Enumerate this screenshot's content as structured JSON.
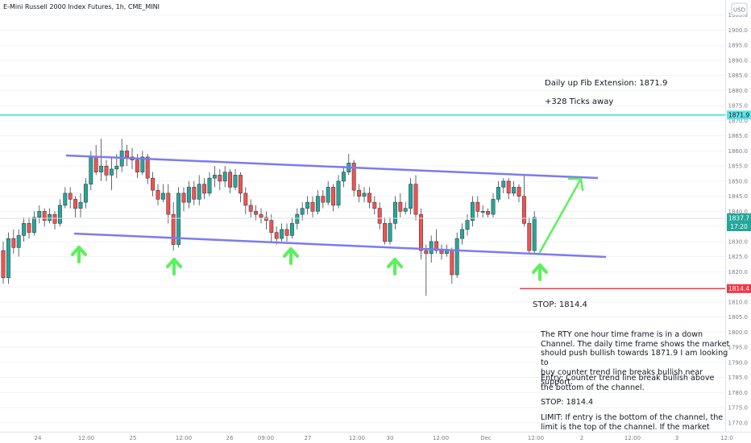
{
  "header": {
    "title": "E-Mini Russell 2000 Index Futures, 1h, CME_MINI",
    "currency": "USD"
  },
  "colors": {
    "up": "#26a69a",
    "down": "#ef5350",
    "channel": "#7b7bf0",
    "target": "#5ee1e6",
    "stop": "#f23645",
    "arrow": "#5cf05c",
    "axis_text": "#787b86",
    "grid": "#f0f3fa"
  },
  "price_axis": {
    "ticks": [
      1770,
      1775,
      1780,
      1785,
      1790,
      1795,
      1800,
      1805,
      1810,
      1815,
      1820,
      1825,
      1830,
      1835,
      1840,
      1845,
      1850,
      1855,
      1860,
      1865,
      1870,
      1875,
      1880,
      1885,
      1890,
      1895,
      1900,
      1905
    ]
  },
  "time_axis": {
    "labels": [
      "24",
      "12:00",
      "25",
      "12:00",
      "26",
      "09:00",
      "27",
      "12:00",
      "30",
      "12:00",
      "Dec",
      "12:00",
      "2",
      "12:00",
      "3",
      "12:0"
    ]
  },
  "badges": {
    "target": {
      "price": "1871.9"
    },
    "last": {
      "price": "1837.7",
      "countdown": "17:20"
    },
    "stop": {
      "price": "1814.4"
    }
  },
  "annotations": {
    "fib": "Daily up Fib Extension: 1871.9",
    "ticks": "+328 Ticks away",
    "stop": "STOP: 1814.4",
    "p1": "The RTY one hour time frame is in a down\nChannel. The daily time frame shows the market\nshould push bullish towards 1871.9 I am looking to\nbuy counter trend line breaks bullish near support.",
    "p2": "Entry: Counter trend line break bullish above\nthe bottom of the channel.",
    "p3": "STOP: 1814.4",
    "p4": "LIMIT: If entry is the bottom of the channel, the\nlimit is the top of the channel. If the market"
  },
  "chart_data": {
    "type": "candlestick",
    "symbol": "E-Mini Russell 2000 Index Futures",
    "timeframe": "1h",
    "ylim": [
      1767,
      1910
    ],
    "levels": {
      "fib_target": 1871.9,
      "stop": 1814.4,
      "last": 1837.7
    },
    "candles": [
      [
        1827,
        1818,
        1830,
        1816
      ],
      [
        1818,
        1831,
        1833,
        1816
      ],
      [
        1831,
        1828,
        1834,
        1826
      ],
      [
        1828,
        1832,
        1834,
        1825
      ],
      [
        1832,
        1836,
        1838,
        1830
      ],
      [
        1836,
        1833,
        1838,
        1831
      ],
      [
        1833,
        1838,
        1840,
        1832
      ],
      [
        1838,
        1840,
        1842,
        1836
      ],
      [
        1840,
        1837,
        1841,
        1835
      ],
      [
        1837,
        1839,
        1841,
        1836
      ],
      [
        1839,
        1836,
        1840,
        1834
      ],
      [
        1836,
        1842,
        1844,
        1835
      ],
      [
        1842,
        1846,
        1848,
        1841
      ],
      [
        1846,
        1844,
        1848,
        1841
      ],
      [
        1844,
        1841,
        1845,
        1838
      ],
      [
        1841,
        1843,
        1846,
        1838
      ],
      [
        1843,
        1849,
        1851,
        1841
      ],
      [
        1849,
        1858,
        1860,
        1847
      ],
      [
        1858,
        1853,
        1862,
        1852
      ],
      [
        1853,
        1855,
        1864,
        1850
      ],
      [
        1855,
        1852,
        1857,
        1850
      ],
      [
        1852,
        1854,
        1858,
        1847
      ],
      [
        1854,
        1855,
        1859,
        1851
      ],
      [
        1855,
        1860,
        1864,
        1853
      ],
      [
        1860,
        1858,
        1862,
        1855
      ],
      [
        1858,
        1857,
        1861,
        1854
      ],
      [
        1857,
        1853,
        1859,
        1851
      ],
      [
        1853,
        1858,
        1860,
        1852
      ],
      [
        1858,
        1851,
        1859,
        1849
      ],
      [
        1851,
        1847,
        1853,
        1845
      ],
      [
        1847,
        1844,
        1849,
        1842
      ],
      [
        1844,
        1846,
        1849,
        1843
      ],
      [
        1846,
        1839,
        1849,
        1836
      ],
      [
        1839,
        1829,
        1843,
        1827
      ],
      [
        1829,
        1846,
        1848,
        1828
      ],
      [
        1846,
        1843,
        1848,
        1840
      ],
      [
        1843,
        1848,
        1850,
        1841
      ],
      [
        1848,
        1844,
        1850,
        1842
      ],
      [
        1844,
        1849,
        1852,
        1842
      ],
      [
        1849,
        1846,
        1851,
        1844
      ],
      [
        1846,
        1851,
        1853,
        1845
      ],
      [
        1851,
        1852,
        1855,
        1848
      ],
      [
        1852,
        1850,
        1854,
        1847
      ],
      [
        1850,
        1853,
        1855,
        1848
      ],
      [
        1853,
        1848,
        1854,
        1846
      ],
      [
        1848,
        1852,
        1854,
        1847
      ],
      [
        1852,
        1846,
        1853,
        1843
      ],
      [
        1846,
        1842,
        1848,
        1839
      ],
      [
        1842,
        1840,
        1844,
        1838
      ],
      [
        1840,
        1839,
        1842,
        1837
      ],
      [
        1839,
        1838,
        1841,
        1836
      ],
      [
        1838,
        1837,
        1840,
        1834
      ],
      [
        1837,
        1833,
        1839,
        1830
      ],
      [
        1833,
        1831,
        1835,
        1829
      ],
      [
        1831,
        1834,
        1836,
        1830
      ],
      [
        1834,
        1832,
        1836,
        1830
      ],
      [
        1832,
        1836,
        1838,
        1831
      ],
      [
        1836,
        1839,
        1841,
        1834
      ],
      [
        1839,
        1841,
        1843,
        1837
      ],
      [
        1841,
        1843,
        1845,
        1839
      ],
      [
        1843,
        1840,
        1845,
        1838
      ],
      [
        1840,
        1845,
        1847,
        1839
      ],
      [
        1845,
        1843,
        1847,
        1841
      ],
      [
        1843,
        1848,
        1850,
        1842
      ],
      [
        1848,
        1842,
        1849,
        1840
      ],
      [
        1842,
        1850,
        1852,
        1841
      ],
      [
        1850,
        1853,
        1855,
        1848
      ],
      [
        1853,
        1856,
        1859,
        1852
      ],
      [
        1856,
        1847,
        1857,
        1845
      ],
      [
        1847,
        1845,
        1849,
        1843
      ],
      [
        1845,
        1846,
        1848,
        1843
      ],
      [
        1846,
        1843,
        1848,
        1841
      ],
      [
        1843,
        1841,
        1845,
        1839
      ],
      [
        1841,
        1836,
        1843,
        1834
      ],
      [
        1836,
        1830,
        1838,
        1829
      ],
      [
        1830,
        1836,
        1838,
        1829
      ],
      [
        1836,
        1843,
        1845,
        1834
      ],
      [
        1843,
        1840,
        1846,
        1838
      ],
      [
        1840,
        1841,
        1843,
        1839
      ],
      [
        1841,
        1849,
        1851,
        1839
      ],
      [
        1849,
        1839,
        1852,
        1837
      ],
      [
        1839,
        1827,
        1841,
        1824
      ],
      [
        1827,
        1826,
        1829,
        1812
      ],
      [
        1826,
        1830,
        1832,
        1823
      ],
      [
        1830,
        1827,
        1834,
        1826
      ],
      [
        1827,
        1826,
        1829,
        1824
      ],
      [
        1826,
        1827,
        1829,
        1825
      ],
      [
        1827,
        1819,
        1828,
        1816
      ],
      [
        1819,
        1831,
        1833,
        1818
      ],
      [
        1831,
        1834,
        1836,
        1829
      ],
      [
        1834,
        1837,
        1839,
        1832
      ],
      [
        1837,
        1843,
        1845,
        1835
      ],
      [
        1843,
        1840,
        1845,
        1838
      ],
      [
        1840,
        1840,
        1842,
        1838
      ],
      [
        1840,
        1839,
        1841,
        1838
      ],
      [
        1839,
        1844,
        1846,
        1838
      ],
      [
        1844,
        1848,
        1850,
        1843
      ],
      [
        1848,
        1850,
        1851,
        1846
      ],
      [
        1850,
        1846,
        1851,
        1844
      ],
      [
        1846,
        1848,
        1850,
        1845
      ],
      [
        1848,
        1845,
        1849,
        1843
      ],
      [
        1845,
        1836,
        1852,
        1835
      ],
      [
        1836,
        1827,
        1838,
        1826
      ],
      [
        1827,
        1838,
        1840,
        1826
      ]
    ]
  }
}
